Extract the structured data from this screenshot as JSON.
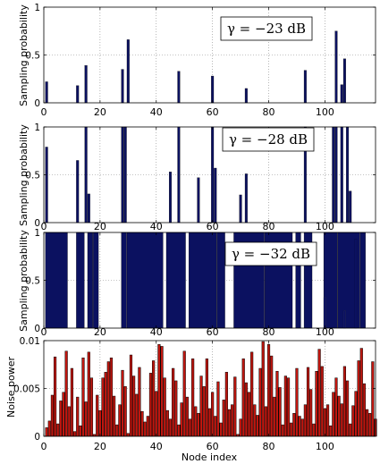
{
  "chart_data": [
    {
      "type": "bar",
      "annotation": "γ = −23 dB",
      "ylabel": "Sampling probability",
      "xlabel": "",
      "xlim": [
        0,
        118
      ],
      "ylim": [
        0,
        1
      ],
      "xticks": [
        0,
        20,
        40,
        60,
        80,
        100
      ],
      "yticks": [
        0,
        0.5,
        1
      ],
      "ytick_labels": [
        "0",
        "0.5",
        "1"
      ],
      "color": "#0b1160",
      "grid": true,
      "points": [
        {
          "x": 1,
          "y": 0.22
        },
        {
          "x": 12,
          "y": 0.18
        },
        {
          "x": 15,
          "y": 0.39
        },
        {
          "x": 28,
          "y": 0.35
        },
        {
          "x": 30,
          "y": 0.66
        },
        {
          "x": 48,
          "y": 0.33
        },
        {
          "x": 60,
          "y": 0.28
        },
        {
          "x": 72,
          "y": 0.15
        },
        {
          "x": 93,
          "y": 0.34
        },
        {
          "x": 104,
          "y": 0.75
        },
        {
          "x": 106,
          "y": 0.19
        },
        {
          "x": 107,
          "y": 0.46
        }
      ]
    },
    {
      "type": "bar",
      "annotation": "γ = −28 dB",
      "ylabel": "Sampling probability",
      "xlabel": "",
      "xlim": [
        0,
        118
      ],
      "ylim": [
        0,
        1
      ],
      "xticks": [
        0,
        20,
        40,
        60,
        80,
        100
      ],
      "yticks": [
        0,
        0.5,
        1
      ],
      "ytick_labels": [
        "0",
        "0.5",
        "1"
      ],
      "color": "#0b1160",
      "grid": true,
      "points": [
        {
          "x": 1,
          "y": 0.79
        },
        {
          "x": 12,
          "y": 0.65
        },
        {
          "x": 15,
          "y": 1.0
        },
        {
          "x": 16,
          "y": 0.3
        },
        {
          "x": 28,
          "y": 1.0
        },
        {
          "x": 29,
          "y": 1.0
        },
        {
          "x": 45,
          "y": 0.53
        },
        {
          "x": 48,
          "y": 1.0
        },
        {
          "x": 55,
          "y": 0.47
        },
        {
          "x": 60,
          "y": 1.0
        },
        {
          "x": 61,
          "y": 0.57
        },
        {
          "x": 70,
          "y": 0.29
        },
        {
          "x": 72,
          "y": 0.51
        },
        {
          "x": 93,
          "y": 1.0
        },
        {
          "x": 103,
          "y": 1.0
        },
        {
          "x": 104,
          "y": 1.0
        },
        {
          "x": 106,
          "y": 1.0
        },
        {
          "x": 108,
          "y": 1.0
        },
        {
          "x": 109,
          "y": 0.33
        }
      ]
    },
    {
      "type": "bar",
      "annotation": "γ = −32 dB",
      "ylabel": "Sampling probability",
      "xlabel": "",
      "xlim": [
        0,
        118
      ],
      "ylim": [
        0,
        1
      ],
      "xticks": [
        0,
        20,
        40,
        60,
        80,
        100
      ],
      "yticks": [
        0,
        0.5,
        1
      ],
      "ytick_labels": [
        "0",
        "0.5",
        "1"
      ],
      "color": "#0b1160",
      "grid": true,
      "filled_ranges": [
        [
          1,
          8
        ],
        [
          12,
          14
        ],
        [
          16,
          17
        ],
        [
          18,
          19
        ],
        [
          28,
          29
        ],
        [
          30,
          42
        ],
        [
          44,
          50
        ],
        [
          52,
          61
        ],
        [
          62,
          64
        ],
        [
          68,
          78
        ],
        [
          79,
          88
        ],
        [
          90,
          91
        ],
        [
          93,
          95
        ],
        [
          100,
          104
        ],
        [
          105,
          112
        ],
        [
          113,
          114
        ]
      ],
      "points": [
        {
          "x": 107,
          "y": 0.18
        },
        {
          "x": 100,
          "y": 0.32
        },
        {
          "x": 111,
          "y": 0.93
        }
      ]
    },
    {
      "type": "bar",
      "annotation": "",
      "ylabel": "Noise power",
      "xlabel": "Node index",
      "xlim": [
        0,
        118
      ],
      "ylim": [
        0,
        0.01
      ],
      "xticks": [
        0,
        20,
        40,
        60,
        80,
        100
      ],
      "yticks": [
        0,
        0.005,
        0.01
      ],
      "ytick_labels": [
        "0",
        "0.005",
        "0.01"
      ],
      "color": "#c0160f",
      "grid": true,
      "values": [
        0.0009,
        0.0016,
        0.0043,
        0.0083,
        0.0013,
        0.0037,
        0.0046,
        0.0089,
        0.0031,
        0.0071,
        0.0005,
        0.0041,
        0.0011,
        0.0082,
        0.0036,
        0.0088,
        0.0061,
        0.0002,
        0.0043,
        0.0027,
        0.0061,
        0.0067,
        0.0078,
        0.0082,
        0.0042,
        0.0012,
        0.0033,
        0.0069,
        0.0052,
        0.0003,
        0.0085,
        0.0063,
        0.0044,
        0.0072,
        0.0026,
        0.0015,
        0.0021,
        0.0066,
        0.0079,
        0.0047,
        0.0096,
        0.0094,
        0.0061,
        0.0027,
        0.0018,
        0.0071,
        0.0058,
        0.0012,
        0.0035,
        0.0089,
        0.0041,
        0.0018,
        0.0081,
        0.0031,
        0.0024,
        0.0063,
        0.0052,
        0.0081,
        0.0029,
        0.0046,
        0.0021,
        0.0057,
        0.0014,
        0.0038,
        0.0067,
        0.0028,
        0.0033,
        0.0062,
        0.0002,
        0.0018,
        0.0081,
        0.0056,
        0.0046,
        0.0088,
        0.0033,
        0.0022,
        0.0071,
        0.0099,
        0.0031,
        0.0096,
        0.0084,
        0.0041,
        0.0068,
        0.0051,
        0.0012,
        0.0063,
        0.0061,
        0.0014,
        0.0024,
        0.0071,
        0.0021,
        0.0018,
        0.0033,
        0.0072,
        0.0049,
        0.0013,
        0.0068,
        0.0091,
        0.0073,
        0.0029,
        0.0033,
        0.0011,
        0.0046,
        0.0061,
        0.0042,
        0.0034,
        0.0073,
        0.0058,
        0.0013,
        0.0032,
        0.0047,
        0.0079,
        0.0092,
        0.0055,
        0.0028,
        0.0024,
        0.0078,
        0.0018
      ]
    }
  ]
}
